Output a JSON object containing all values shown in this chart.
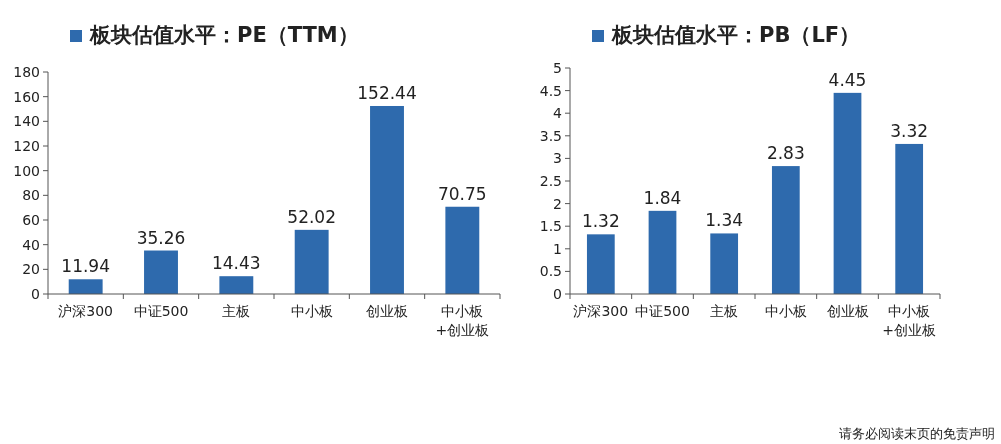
{
  "chart_data": [
    {
      "type": "bar",
      "categories": [
        "沪深300",
        "中证500",
        "主板",
        "中小板",
        "创业板",
        "中小板\n+创业板"
      ],
      "series": [
        {
          "name": "板块估值水平：PE（TTM）",
          "color": "#2e6aad",
          "values": [
            11.94,
            35.26,
            14.43,
            52.02,
            152.44,
            70.75
          ]
        }
      ],
      "ylim": [
        0,
        180
      ],
      "yticks": [
        0,
        20,
        40,
        60,
        80,
        100,
        120,
        140,
        160,
        180
      ],
      "data_labels": true,
      "legend": "top",
      "grid": false
    },
    {
      "type": "bar",
      "categories": [
        "沪深300",
        "中证500",
        "主板",
        "中小板",
        "创业板",
        "中小板\n+创业板"
      ],
      "series": [
        {
          "name": "板块估值水平：PB（LF）",
          "color": "#2e6aad",
          "values": [
            1.32,
            1.84,
            1.34,
            2.83,
            4.45,
            3.32
          ]
        }
      ],
      "ylim": [
        0,
        5
      ],
      "yticks": [
        0,
        0.5,
        1,
        1.5,
        2,
        2.5,
        3,
        3.5,
        4,
        4.5,
        5
      ],
      "data_labels": true,
      "legend": "top",
      "grid": false,
      "annotations": [
        "请务必阅读末页的免责声明"
      ]
    }
  ]
}
